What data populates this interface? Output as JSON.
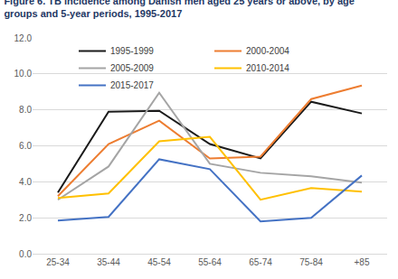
{
  "chart_data": {
    "type": "line",
    "title": "Figure 6. TB incidence among Danish men aged 25 years or above, by age groups and 5-year periods, 1995-2017",
    "categories": [
      "25-34",
      "35-44",
      "45-54",
      "55-64",
      "65-74",
      "75-84",
      "+85"
    ],
    "series": [
      {
        "name": "1995-1999",
        "color": "#1a1a1a",
        "values": [
          3.4,
          7.9,
          7.95,
          6.1,
          5.3,
          8.45,
          7.8
        ]
      },
      {
        "name": "2000-2004",
        "color": "#ed7d31",
        "values": [
          3.2,
          6.1,
          7.4,
          5.3,
          5.4,
          8.6,
          9.35
        ]
      },
      {
        "name": "2005-2009",
        "color": "#a5a5a5",
        "values": [
          3.0,
          4.85,
          8.95,
          5.0,
          4.5,
          4.3,
          3.95
        ]
      },
      {
        "name": "2010-2014",
        "color": "#ffc000",
        "values": [
          3.1,
          3.35,
          6.25,
          6.5,
          3.0,
          3.65,
          3.45
        ]
      },
      {
        "name": "2015-2017",
        "color": "#4472c4",
        "values": [
          1.85,
          2.05,
          5.25,
          4.7,
          1.8,
          2.0,
          4.35
        ]
      }
    ],
    "ylim": [
      0,
      12
    ],
    "yticks": [
      {
        "value": 0,
        "label": "0.0"
      },
      {
        "value": 2,
        "label": "2.0"
      },
      {
        "value": 4,
        "label": "4.0"
      },
      {
        "value": 6,
        "label": "6.0"
      },
      {
        "value": 8,
        "label": "8.0"
      },
      {
        "value": 10,
        "label": "10.0"
      },
      {
        "value": 12,
        "label": "12.0"
      }
    ],
    "grid": true,
    "legend": "top"
  }
}
